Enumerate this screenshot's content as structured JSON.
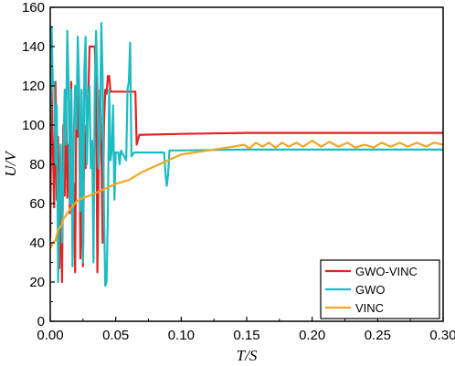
{
  "chart_data": {
    "type": "line",
    "title": "",
    "xlabel": "T/S",
    "ylabel": "U/V",
    "xlim": [
      0,
      0.3
    ],
    "ylim": [
      0,
      160
    ],
    "x_ticks": [
      0.0,
      0.05,
      0.1,
      0.15,
      0.2,
      0.25,
      0.3
    ],
    "x_tick_labels": [
      "0.00",
      "0.05",
      "0.10",
      "0.15",
      "0.20",
      "0.25",
      "0.30"
    ],
    "y_ticks": [
      0,
      20,
      40,
      60,
      80,
      100,
      120,
      140,
      160
    ],
    "y_tick_labels": [
      "0",
      "20",
      "40",
      "60",
      "80",
      "100",
      "120",
      "140",
      "160"
    ],
    "grid": false,
    "legend_position": "bottom-right",
    "series": [
      {
        "name": "GWO-VINC",
        "color": "#e52222",
        "points": [
          [
            0.0,
            42
          ],
          [
            0.001,
            120
          ],
          [
            0.003,
            58
          ],
          [
            0.004,
            122
          ],
          [
            0.005,
            62
          ],
          [
            0.006,
            94
          ],
          [
            0.007,
            27
          ],
          [
            0.008,
            68
          ],
          [
            0.009,
            20
          ],
          [
            0.01,
            100
          ],
          [
            0.011,
            64
          ],
          [
            0.012,
            118
          ],
          [
            0.013,
            63
          ],
          [
            0.014,
            90
          ],
          [
            0.015,
            55
          ],
          [
            0.016,
            122
          ],
          [
            0.017,
            40
          ],
          [
            0.018,
            70
          ],
          [
            0.019,
            25
          ],
          [
            0.02,
            118
          ],
          [
            0.021,
            94
          ],
          [
            0.022,
            120
          ],
          [
            0.023,
            32
          ],
          [
            0.024,
            68
          ],
          [
            0.025,
            28
          ],
          [
            0.026,
            100
          ],
          [
            0.027,
            78
          ],
          [
            0.028,
            100
          ],
          [
            0.029,
            112
          ],
          [
            0.03,
            140
          ],
          [
            0.034,
            140
          ],
          [
            0.035,
            118
          ],
          [
            0.036,
            25
          ],
          [
            0.037,
            80
          ],
          [
            0.038,
            118
          ],
          [
            0.039,
            90
          ],
          [
            0.04,
            40
          ],
          [
            0.041,
            100
          ],
          [
            0.042,
            118
          ],
          [
            0.043,
            116
          ],
          [
            0.044,
            125
          ],
          [
            0.045,
            125
          ],
          [
            0.046,
            117
          ],
          [
            0.065,
            117
          ],
          [
            0.066,
            90
          ],
          [
            0.068,
            95
          ],
          [
            0.1,
            95.5
          ],
          [
            0.15,
            96
          ],
          [
            0.2,
            96
          ],
          [
            0.25,
            96
          ],
          [
            0.3,
            96
          ]
        ]
      },
      {
        "name": "GWO",
        "color": "#1cbcc2",
        "points": [
          [
            0.0,
            96
          ],
          [
            0.001,
            150
          ],
          [
            0.002,
            120
          ],
          [
            0.003,
            122
          ],
          [
            0.004,
            80
          ],
          [
            0.005,
            110
          ],
          [
            0.006,
            20
          ],
          [
            0.007,
            62
          ],
          [
            0.008,
            90
          ],
          [
            0.009,
            40
          ],
          [
            0.01,
            78
          ],
          [
            0.011,
            118
          ],
          [
            0.012,
            90
          ],
          [
            0.013,
            148
          ],
          [
            0.014,
            120
          ],
          [
            0.015,
            60
          ],
          [
            0.016,
            118
          ],
          [
            0.017,
            28
          ],
          [
            0.018,
            96
          ],
          [
            0.019,
            120
          ],
          [
            0.02,
            98
          ],
          [
            0.021,
            145
          ],
          [
            0.022,
            122
          ],
          [
            0.023,
            56
          ],
          [
            0.024,
            118
          ],
          [
            0.025,
            30
          ],
          [
            0.026,
            128
          ],
          [
            0.027,
            145
          ],
          [
            0.028,
            80
          ],
          [
            0.029,
            112
          ],
          [
            0.03,
            120
          ],
          [
            0.031,
            78
          ],
          [
            0.032,
            92
          ],
          [
            0.033,
            30
          ],
          [
            0.034,
            118
          ],
          [
            0.035,
            148
          ],
          [
            0.036,
            122
          ],
          [
            0.037,
            78
          ],
          [
            0.038,
            96
          ],
          [
            0.039,
            152
          ],
          [
            0.04,
            124
          ],
          [
            0.041,
            58
          ],
          [
            0.042,
            18
          ],
          [
            0.043,
            20
          ],
          [
            0.044,
            55
          ],
          [
            0.045,
            118
          ],
          [
            0.046,
            82
          ],
          [
            0.047,
            87
          ],
          [
            0.048,
            110
          ],
          [
            0.049,
            62
          ],
          [
            0.05,
            86
          ],
          [
            0.052,
            86
          ],
          [
            0.053,
            80
          ],
          [
            0.054,
            87
          ],
          [
            0.058,
            82
          ],
          [
            0.059,
            118
          ],
          [
            0.06,
            122
          ],
          [
            0.061,
            142
          ],
          [
            0.062,
            84
          ],
          [
            0.064,
            86
          ],
          [
            0.087,
            86
          ],
          [
            0.088,
            75
          ],
          [
            0.089,
            69
          ],
          [
            0.09,
            75
          ],
          [
            0.091,
            87
          ],
          [
            0.15,
            87.5
          ],
          [
            0.2,
            87.5
          ],
          [
            0.25,
            87.5
          ],
          [
            0.3,
            87.5
          ]
        ]
      },
      {
        "name": "VINC",
        "color": "#f2a623",
        "points": [
          [
            0.0,
            37
          ],
          [
            0.002,
            40
          ],
          [
            0.004,
            41
          ],
          [
            0.006,
            47
          ],
          [
            0.008,
            48
          ],
          [
            0.01,
            52
          ],
          [
            0.015,
            57
          ],
          [
            0.02,
            61
          ],
          [
            0.025,
            63
          ],
          [
            0.03,
            64
          ],
          [
            0.04,
            67
          ],
          [
            0.05,
            70
          ],
          [
            0.06,
            72
          ],
          [
            0.065,
            74
          ],
          [
            0.07,
            76
          ],
          [
            0.08,
            79
          ],
          [
            0.09,
            82
          ],
          [
            0.1,
            85
          ],
          [
            0.11,
            86
          ],
          [
            0.12,
            87
          ],
          [
            0.13,
            88
          ],
          [
            0.14,
            89
          ],
          [
            0.148,
            90
          ],
          [
            0.152,
            88
          ],
          [
            0.157,
            91
          ],
          [
            0.162,
            89
          ],
          [
            0.167,
            91
          ],
          [
            0.172,
            88.5
          ],
          [
            0.177,
            91
          ],
          [
            0.182,
            89
          ],
          [
            0.188,
            91
          ],
          [
            0.193,
            89
          ],
          [
            0.2,
            92
          ],
          [
            0.207,
            89
          ],
          [
            0.213,
            91.5
          ],
          [
            0.22,
            89
          ],
          [
            0.227,
            91
          ],
          [
            0.233,
            88.5
          ],
          [
            0.24,
            90
          ],
          [
            0.247,
            88.5
          ],
          [
            0.253,
            91
          ],
          [
            0.26,
            89
          ],
          [
            0.267,
            91
          ],
          [
            0.273,
            89
          ],
          [
            0.28,
            91
          ],
          [
            0.287,
            89
          ],
          [
            0.293,
            91
          ],
          [
            0.3,
            90
          ]
        ]
      }
    ]
  }
}
